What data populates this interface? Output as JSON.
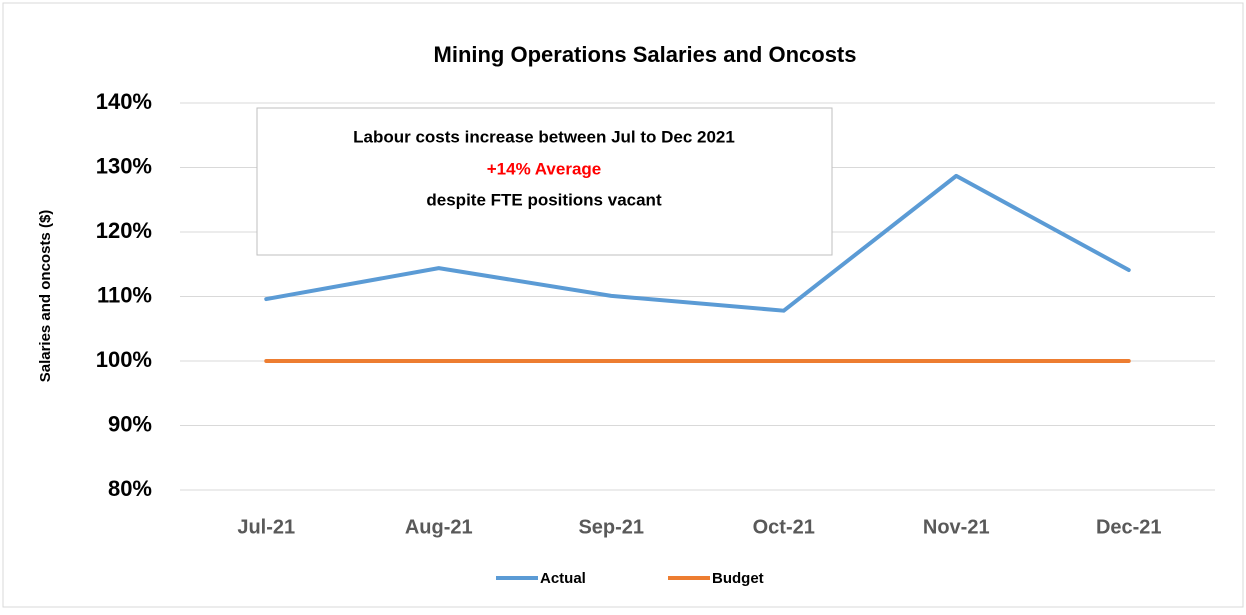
{
  "chart_data": {
    "type": "line",
    "title": "Mining Operations Salaries and Oncosts",
    "y_label": "Salaries and oncosts ($)",
    "categories": [
      "Jul-21",
      "Aug-21",
      "Sep-21",
      "Oct-21",
      "Nov-21",
      "Dec-21"
    ],
    "series": [
      {
        "name": "Actual",
        "color": "#5b9bd5",
        "values": [
          109.6,
          114.4,
          110.1,
          107.8,
          128.7,
          114.1
        ]
      },
      {
        "name": "Budget",
        "color": "#ed7d31",
        "values": [
          100,
          100,
          100,
          100,
          100,
          100
        ]
      }
    ],
    "ylim": [
      80,
      140
    ],
    "yticks": [
      {
        "value": 80,
        "label": "80%"
      },
      {
        "value": 90,
        "label": "90%"
      },
      {
        "value": 100,
        "label": "100%"
      },
      {
        "value": 110,
        "label": "110%"
      },
      {
        "value": 120,
        "label": "120%"
      },
      {
        "value": 130,
        "label": "130%"
      },
      {
        "value": 140,
        "label": "140%"
      }
    ],
    "grid": true,
    "legend": "bottom",
    "annotation": [
      "Labour costs increase between Jul to Dec 2021",
      "+14% Average",
      "despite FTE positions vacant"
    ]
  }
}
